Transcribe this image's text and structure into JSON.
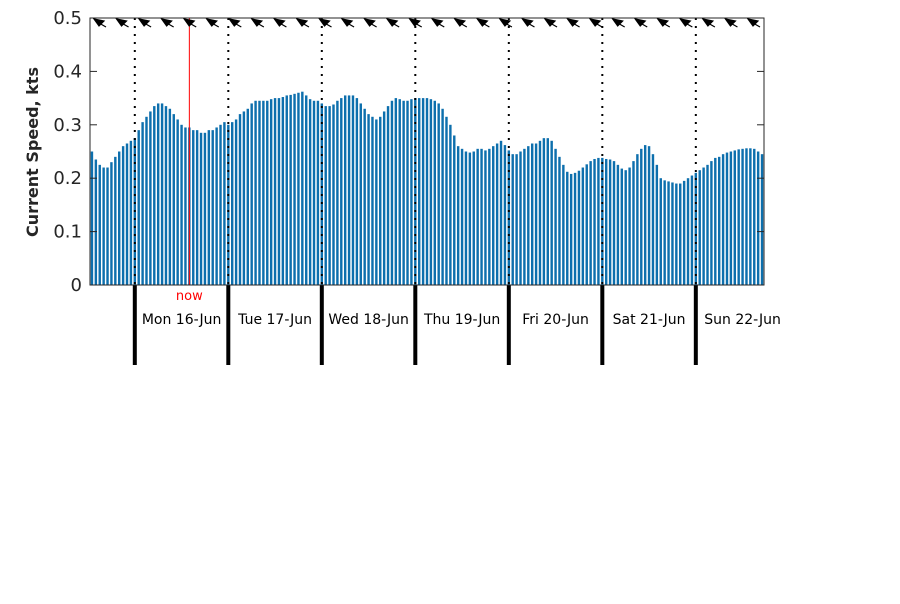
{
  "chart_data": {
    "type": "bar",
    "ylabel": "Current Speed, kts",
    "ylim": [
      0,
      0.5
    ],
    "yticks": [
      "0",
      "0.1",
      "0.2",
      "0.3",
      "0.4",
      "0.5"
    ],
    "interval_hours": 1,
    "day_labels": [
      "Mon 16-Jun",
      "Tue 17-Jun",
      "Wed 18-Jun",
      "Thu 19-Jun",
      "Fri 20-Jun",
      "Sat 21-Jun",
      "Sun 22-Jun"
    ],
    "now_label": "now",
    "now_index": 25,
    "day_start_indices": [
      11,
      35,
      59,
      83,
      107,
      131,
      155
    ],
    "values": [
      0.25,
      0.235,
      0.225,
      0.22,
      0.22,
      0.23,
      0.24,
      0.25,
      0.26,
      0.265,
      0.27,
      0.275,
      0.29,
      0.305,
      0.315,
      0.325,
      0.335,
      0.34,
      0.34,
      0.335,
      0.33,
      0.32,
      0.31,
      0.3,
      0.295,
      0.295,
      0.29,
      0.29,
      0.285,
      0.285,
      0.29,
      0.29,
      0.295,
      0.3,
      0.305,
      0.3,
      0.305,
      0.31,
      0.32,
      0.325,
      0.33,
      0.34,
      0.345,
      0.345,
      0.345,
      0.345,
      0.348,
      0.35,
      0.35,
      0.352,
      0.355,
      0.356,
      0.358,
      0.36,
      0.362,
      0.355,
      0.348,
      0.345,
      0.345,
      0.34,
      0.335,
      0.335,
      0.338,
      0.345,
      0.35,
      0.355,
      0.355,
      0.355,
      0.35,
      0.34,
      0.33,
      0.32,
      0.315,
      0.31,
      0.315,
      0.325,
      0.335,
      0.345,
      0.35,
      0.348,
      0.345,
      0.345,
      0.348,
      0.35,
      0.35,
      0.35,
      0.35,
      0.348,
      0.345,
      0.34,
      0.33,
      0.315,
      0.3,
      0.28,
      0.26,
      0.255,
      0.25,
      0.248,
      0.25,
      0.255,
      0.255,
      0.252,
      0.255,
      0.26,
      0.265,
      0.27,
      0.262,
      0.252,
      0.245,
      0.245,
      0.25,
      0.255,
      0.26,
      0.265,
      0.265,
      0.27,
      0.275,
      0.275,
      0.27,
      0.255,
      0.24,
      0.225,
      0.212,
      0.208,
      0.21,
      0.214,
      0.22,
      0.226,
      0.232,
      0.236,
      0.238,
      0.238,
      0.236,
      0.235,
      0.232,
      0.225,
      0.218,
      0.215,
      0.22,
      0.232,
      0.245,
      0.255,
      0.262,
      0.26,
      0.245,
      0.225,
      0.2,
      0.196,
      0.194,
      0.192,
      0.19,
      0.19,
      0.195,
      0.2,
      0.205,
      0.21,
      0.215,
      0.22,
      0.225,
      0.232,
      0.238,
      0.24,
      0.245,
      0.248,
      0.25,
      0.252,
      0.254,
      0.255,
      0.256,
      0.256,
      0.255,
      0.25,
      0.245
    ],
    "direction_arrows": 30,
    "colors": {
      "bar": "#0d6fad",
      "now_line": "#ff0000",
      "axis": "#262626",
      "day_marker": "#000000"
    }
  }
}
